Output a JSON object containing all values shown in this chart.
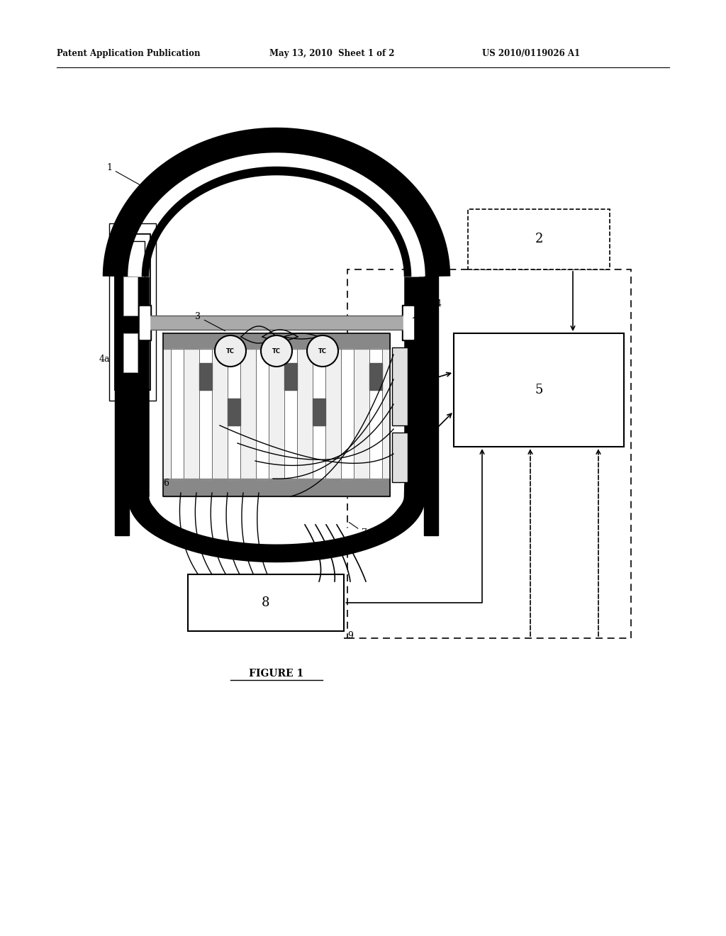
{
  "bg_color": "#ffffff",
  "header_left": "Patent Application Publication",
  "header_mid": "May 13, 2010  Sheet 1 of 2",
  "header_right": "US 2010/0119026 A1",
  "figure_label": "FIGURE 1"
}
